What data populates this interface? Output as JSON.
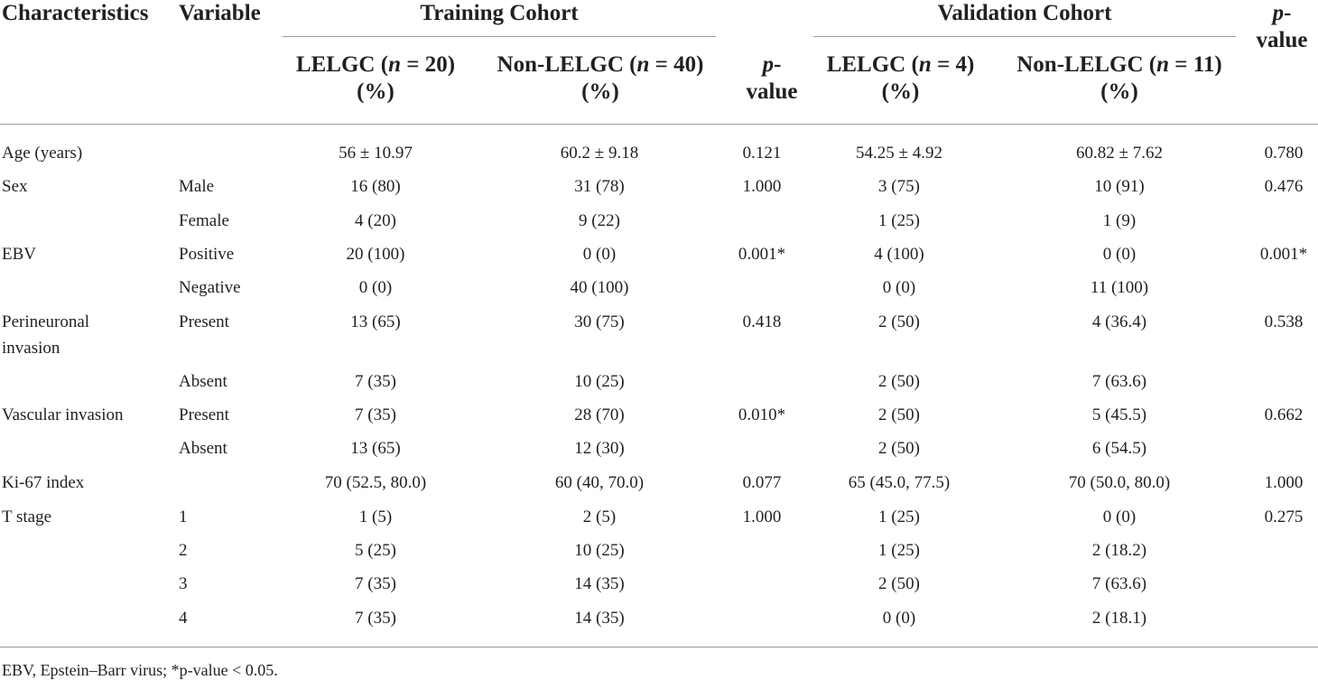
{
  "table": {
    "header": {
      "characteristics": "Characteristics",
      "variable": "Variable",
      "training_cohort": "Training Cohort",
      "validation_cohort": "Validation Cohort",
      "p_value_top_italic": "p",
      "p_value_top_rest": "-",
      "p_value_bottom": "value",
      "train_lelgc_line1_pre": "LELGC (",
      "train_lelgc_line1_n": "n",
      "train_lelgc_line1_post": " = 20)",
      "train_non_line1_pre": "Non-LELGC (",
      "train_non_line1_n": "n",
      "train_non_line1_post": " = 40)",
      "val_lelgc_line1_pre": "LELGC (",
      "val_lelgc_line1_n": "n",
      "val_lelgc_line1_post": " = 4)",
      "val_non_line1_pre": "Non-LELGC (",
      "val_non_line1_n": "n",
      "val_non_line1_post": " = 11)",
      "percent": "(%)"
    },
    "rows": [
      {
        "char": "Age (years)",
        "var": "",
        "tl": "56 ± 10.97",
        "tn": "60.2 ± 9.18",
        "tp": "0.121",
        "vl": "54.25 ± 4.92",
        "vn": "60.82 ± 7.62",
        "vp": "0.780"
      },
      {
        "char": "Sex",
        "var": "Male",
        "tl": "16 (80)",
        "tn": "31 (78)",
        "tp": "1.000",
        "vl": "3 (75)",
        "vn": "10 (91)",
        "vp": "0.476"
      },
      {
        "char": "",
        "var": "Female",
        "tl": "4 (20)",
        "tn": "9 (22)",
        "tp": "",
        "vl": "1 (25)",
        "vn": "1 (9)",
        "vp": ""
      },
      {
        "char": "EBV",
        "var": "Positive",
        "tl": "20 (100)",
        "tn": "0 (0)",
        "tp": "0.001*",
        "vl": "4 (100)",
        "vn": "0 (0)",
        "vp": "0.001*"
      },
      {
        "char": "",
        "var": "Negative",
        "tl": "0 (0)",
        "tn": "40 (100)",
        "tp": "",
        "vl": "0 (0)",
        "vn": "11 (100)",
        "vp": ""
      },
      {
        "char": "Perineuronal",
        "char2": "invasion",
        "var": "Present",
        "tl": "13 (65)",
        "tn": "30 (75)",
        "tp": "0.418",
        "vl": "2 (50)",
        "vn": "4 (36.4)",
        "vp": "0.538"
      },
      {
        "char": "",
        "var": "Absent",
        "tl": "7 (35)",
        "tn": "10 (25)",
        "tp": "",
        "vl": "2 (50)",
        "vn": "7 (63.6)",
        "vp": ""
      },
      {
        "char": "Vascular invasion",
        "var": "Present",
        "tl": "7 (35)",
        "tn": "28 (70)",
        "tp": "0.010*",
        "vl": "2 (50)",
        "vn": "5 (45.5)",
        "vp": "0.662"
      },
      {
        "char": "",
        "var": "Absent",
        "tl": "13 (65)",
        "tn": "12 (30)",
        "tp": "",
        "vl": "2 (50)",
        "vn": "6 (54.5)",
        "vp": ""
      },
      {
        "char": "Ki-67 index",
        "var": "",
        "tl": "70 (52.5, 80.0)",
        "tn": "60 (40, 70.0)",
        "tp": "0.077",
        "vl": "65 (45.0, 77.5)",
        "vn": "70 (50.0, 80.0)",
        "vp": "1.000"
      },
      {
        "char": "T stage",
        "var": "1",
        "tl": "1 (5)",
        "tn": "2 (5)",
        "tp": "1.000",
        "vl": "1 (25)",
        "vn": "0 (0)",
        "vp": "0.275"
      },
      {
        "char": "",
        "var": "2",
        "tl": "5 (25)",
        "tn": "10 (25)",
        "tp": "",
        "vl": "1 (25)",
        "vn": "2 (18.2)",
        "vp": ""
      },
      {
        "char": "",
        "var": "3",
        "tl": "7 (35)",
        "tn": "14 (35)",
        "tp": "",
        "vl": "2 (50)",
        "vn": "7 (63.6)",
        "vp": ""
      },
      {
        "char": "",
        "var": "4",
        "tl": "7 (35)",
        "tn": "14 (35)",
        "tp": "",
        "vl": "0 (0)",
        "vn": "2 (18.1)",
        "vp": ""
      }
    ],
    "footnote": "EBV, Epstein–Barr virus; *p-value < 0.05."
  }
}
